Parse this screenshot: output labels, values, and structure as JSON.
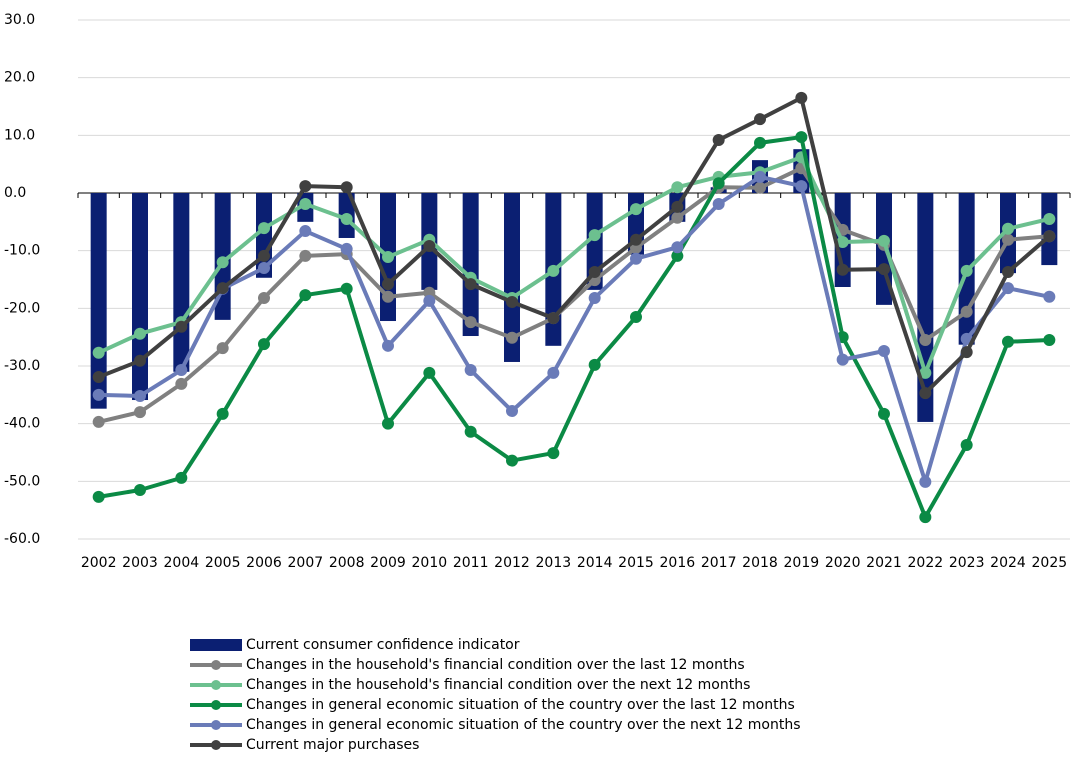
{
  "chart_data": {
    "type": "bar-line",
    "categories": [
      "2002",
      "2003",
      "2004",
      "2005",
      "2006",
      "2007",
      "2008",
      "2009",
      "2010",
      "2011",
      "2012",
      "2013",
      "2014",
      "2015",
      "2016",
      "2017",
      "2018",
      "2019",
      "2020",
      "2021",
      "2022",
      "2023",
      "2024",
      "2025"
    ],
    "ylim": [
      -60,
      30
    ],
    "yticks": [
      {
        "value": -60,
        "label": "-60.0"
      },
      {
        "value": -50,
        "label": "-50.0"
      },
      {
        "value": -40,
        "label": "-40.0"
      },
      {
        "value": -30,
        "label": "-30.0"
      },
      {
        "value": -20,
        "label": "-20.0"
      },
      {
        "value": -10,
        "label": "-10.0"
      },
      {
        "value": 0,
        "label": "0.0"
      },
      {
        "value": 10,
        "label": "10.0"
      },
      {
        "value": 20,
        "label": "20.0"
      },
      {
        "value": 30,
        "label": "30.0"
      }
    ],
    "grid": true,
    "series": [
      {
        "name": "Current consumer confidence indicator",
        "type": "bar",
        "color": "#0b1f72",
        "values": [
          -37.4,
          -35.9,
          -31,
          -22,
          -14.7,
          -5,
          -7.8,
          -22.2,
          -16.8,
          -24.8,
          -29.3,
          -26.5,
          -16.8,
          -10.7,
          -5,
          1,
          5.7,
          7.6,
          -16.3,
          -19.4,
          -39.7,
          -26.3,
          -13.9,
          -12.5
        ]
      },
      {
        "name": "Changes in the household's financial condition over the last 12 months",
        "type": "line",
        "color": "#808080",
        "values": [
          -39.7,
          -38,
          -33.1,
          -26.9,
          -18.2,
          -10.9,
          -10.6,
          -18,
          -17.3,
          -22.4,
          -25.1,
          -21.7,
          -15.1,
          -9.5,
          -4.3,
          1,
          0.9,
          4.3,
          -6.4,
          -9,
          -25.5,
          -20.6,
          -8.1,
          -7.5
        ]
      },
      {
        "name": "Changes in the household's financial condition over the next 12 months",
        "type": "line",
        "color": "#6cc08f",
        "values": [
          -27.7,
          -24.4,
          -22.4,
          -12,
          -6.1,
          -1.9,
          -4.5,
          -11.1,
          -8.1,
          -14.7,
          -18.2,
          -13.5,
          -7.3,
          -2.8,
          1,
          2.8,
          3.6,
          6.2,
          -8.5,
          -8.3,
          -31.2,
          -13.5,
          -6.2,
          -4.5
        ]
      },
      {
        "name": "Changes in general economic situation of the country over the last 12 months",
        "type": "line",
        "color": "#0b8a45",
        "values": [
          -52.7,
          -51.5,
          -49.4,
          -38.3,
          -26.2,
          -17.7,
          -16.6,
          -40,
          -31.2,
          -41.4,
          -46.4,
          -45.1,
          -29.8,
          -21.5,
          -10.9,
          1.7,
          8.7,
          9.7,
          -25,
          -38.3,
          -56.2,
          -43.7,
          -25.8,
          -25.5
        ]
      },
      {
        "name": "Changes in general economic situation of the country over the next 12 months",
        "type": "line",
        "color": "#6a7bb8",
        "values": [
          -35,
          -35.2,
          -30.7,
          -16.6,
          -13,
          -6.6,
          -9.7,
          -26.5,
          -18.7,
          -30.7,
          -37.8,
          -31.2,
          -18.2,
          -11.4,
          -9.4,
          -1.9,
          2.8,
          1.2,
          -28.9,
          -27.4,
          -50.1,
          -25.3,
          -16.5,
          -18
        ]
      },
      {
        "name": "Current major purchases",
        "type": "line",
        "color": "#404040",
        "values": [
          -31.9,
          -29.1,
          -23.2,
          -16.5,
          -10.9,
          1.2,
          1,
          -15.8,
          -9.2,
          -15.8,
          -18.9,
          -21.7,
          -13.7,
          -8.1,
          -2.4,
          9.2,
          12.8,
          16.5,
          -13.3,
          -13.2,
          -34.7,
          -27.6,
          -13.7,
          -7.5
        ]
      }
    ]
  }
}
